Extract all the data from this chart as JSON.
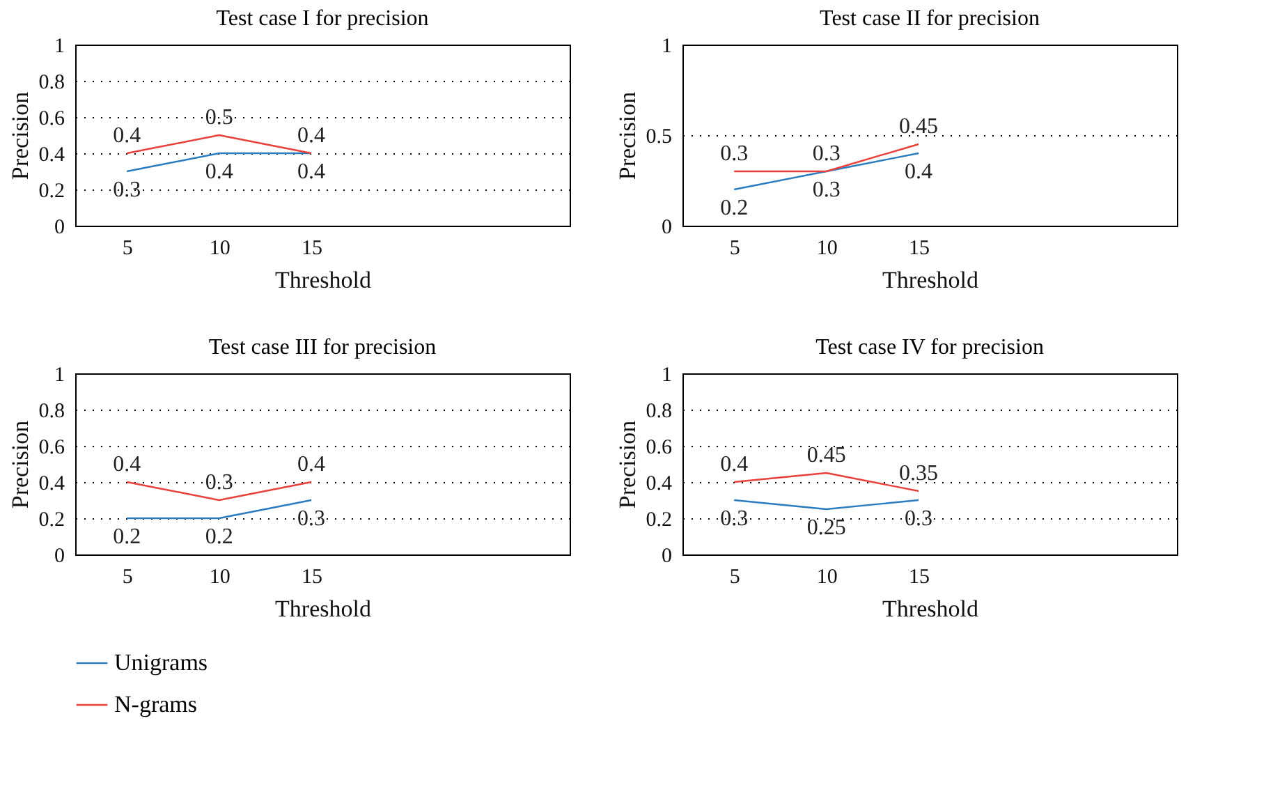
{
  "chart_data": [
    {
      "type": "line",
      "title": "Test case I for precision",
      "xlabel": "Threshold",
      "ylabel": "Precision",
      "x": [
        5,
        10,
        15
      ],
      "xlim": [
        2.2,
        29
      ],
      "xticks": [
        5,
        10,
        15
      ],
      "ylim": [
        0,
        1
      ],
      "yticks": [
        0,
        0.2,
        0.4,
        0.6,
        0.8,
        1
      ],
      "grid": "y",
      "data_labels": true,
      "legend": "bottom left",
      "series": [
        {
          "name": "Unigrams",
          "color": "#2b7bbf",
          "values": [
            0.3,
            0.4,
            0.4
          ]
        },
        {
          "name": "N-grams",
          "color": "#e8403a",
          "values": [
            0.4,
            0.5,
            0.4
          ]
        }
      ]
    },
    {
      "type": "line",
      "title": "Test case II for precision",
      "xlabel": "Threshold",
      "ylabel": "Precision",
      "x": [
        5,
        10,
        15
      ],
      "xlim": [
        2.2,
        29
      ],
      "xticks": [
        5,
        10,
        15
      ],
      "ylim": [
        0,
        1
      ],
      "yticks": [
        {
          "value": 0,
          "label": "0"
        },
        0.5,
        {
          "value": 1,
          "label": "1"
        }
      ],
      "grid": "y",
      "data_labels": true,
      "series": [
        {
          "name": "Unigrams",
          "color": "#2b7bbf",
          "values": [
            0.2,
            0.3,
            0.4
          ]
        },
        {
          "name": "N-grams",
          "color": "#e8403a",
          "values": [
            0.3,
            0.3,
            0.45
          ]
        }
      ]
    },
    {
      "type": "line",
      "title": "Test case III for precision",
      "xlabel": "Threshold",
      "ylabel": "Precision",
      "x": [
        5,
        10,
        15
      ],
      "xlim": [
        2.2,
        29
      ],
      "xticks": [
        5,
        10,
        15
      ],
      "ylim": [
        0,
        1
      ],
      "yticks": [
        0,
        0.2,
        0.4,
        0.6,
        0.8,
        1
      ],
      "grid": "y",
      "data_labels": true,
      "series": [
        {
          "name": "Unigrams",
          "color": "#2b7bbf",
          "values": [
            0.2,
            0.2,
            0.3
          ]
        },
        {
          "name": "N-grams",
          "color": "#e8403a",
          "values": [
            0.4,
            0.3,
            0.4
          ]
        }
      ]
    },
    {
      "type": "line",
      "title": "Test case IV for precision",
      "xlabel": "Threshold",
      "ylabel": "Precision",
      "x": [
        5,
        10,
        15
      ],
      "xlim": [
        2.2,
        29
      ],
      "xticks": [
        5,
        10,
        15
      ],
      "ylim": [
        0,
        1
      ],
      "yticks": [
        0,
        0.2,
        0.4,
        0.6,
        0.8,
        1
      ],
      "grid": "y",
      "data_labels": true,
      "series": [
        {
          "name": "Unigrams",
          "color": "#2b7bbf",
          "values": [
            0.3,
            0.25,
            0.3
          ]
        },
        {
          "name": "N-grams",
          "color": "#e8403a",
          "values": [
            0.4,
            0.45,
            0.35
          ]
        }
      ]
    }
  ]
}
